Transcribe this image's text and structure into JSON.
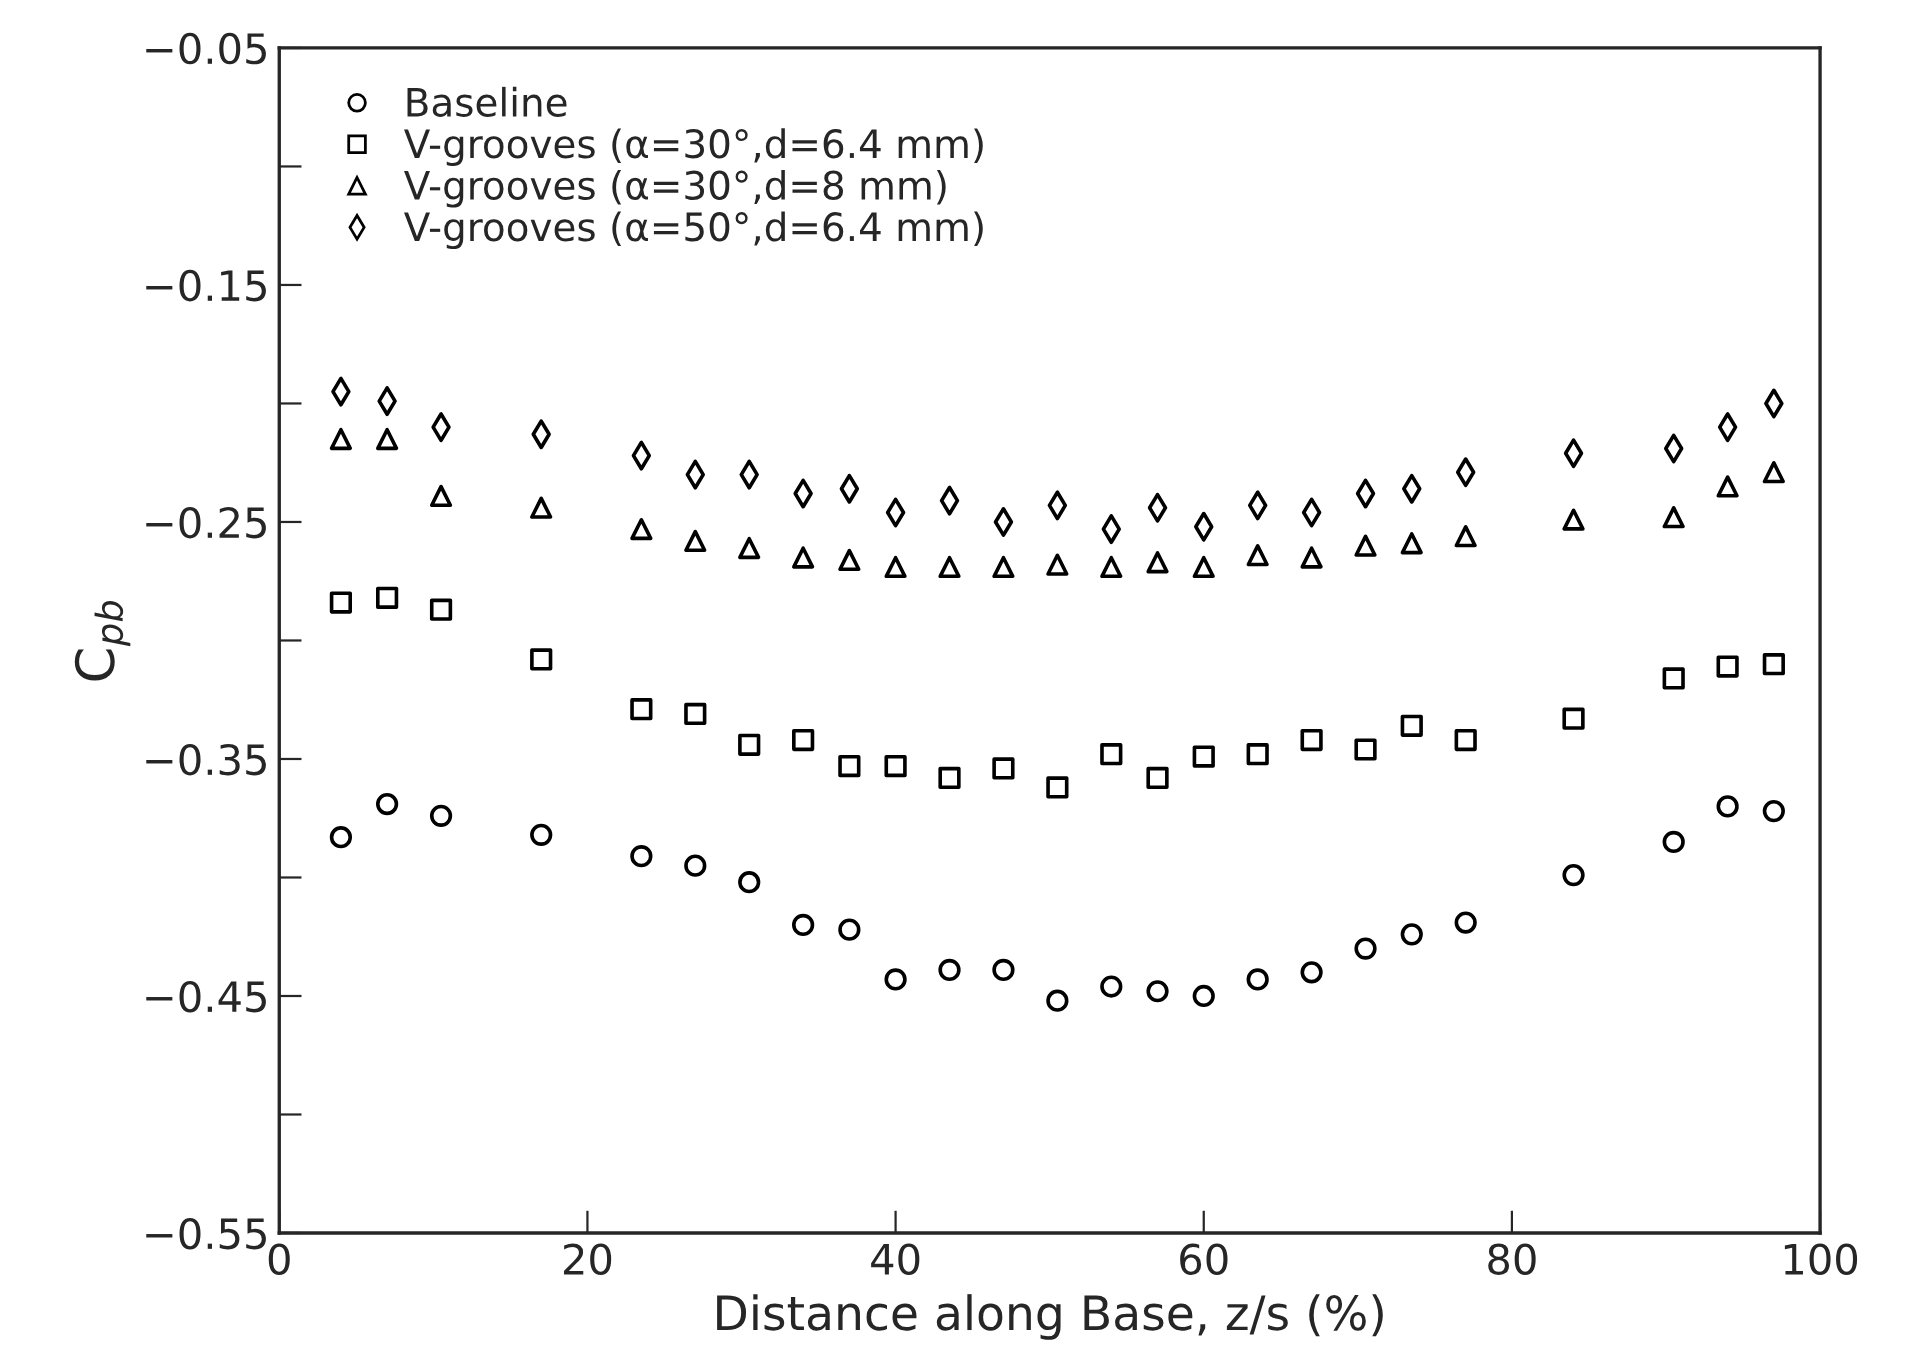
{
  "chart_data": {
    "type": "scatter",
    "xlabel": "Distance along Base, z/s (%)",
    "ylabel": "C$_{pb}$",
    "x": [
      4,
      7,
      10.5,
      17,
      23.5,
      27,
      30.5,
      34,
      37,
      40,
      43.5,
      47,
      50.5,
      54,
      57,
      60,
      63.5,
      67,
      70.5,
      73.5,
      77,
      84,
      90.5,
      94,
      97
    ],
    "series": [
      {
        "name": "Baseline",
        "color": "#000000",
        "marker": "circle",
        "values": [
          -0.383,
          -0.369,
          -0.374,
          -0.382,
          -0.391,
          -0.395,
          -0.402,
          -0.42,
          -0.422,
          -0.443,
          -0.439,
          -0.439,
          -0.452,
          -0.446,
          -0.448,
          -0.45,
          -0.443,
          -0.44,
          -0.43,
          -0.424,
          -0.419,
          -0.399,
          -0.385,
          -0.37,
          -0.372
        ]
      },
      {
        "name": "V-grooves (α=30°,d=6.4 mm)",
        "color": "#000000",
        "marker": "square",
        "values": [
          -0.284,
          -0.282,
          -0.287,
          -0.308,
          -0.329,
          -0.331,
          -0.344,
          -0.342,
          -0.353,
          -0.353,
          -0.358,
          -0.354,
          -0.362,
          -0.348,
          -0.358,
          -0.349,
          -0.348,
          -0.342,
          -0.346,
          -0.336,
          -0.342,
          -0.333,
          -0.316,
          -0.311,
          -0.31
        ]
      },
      {
        "name": "V-grooves (α=30°,d=8 mm)",
        "color": "#000000",
        "marker": "triangle",
        "values": [
          -0.215,
          -0.215,
          -0.239,
          -0.244,
          -0.253,
          -0.258,
          -0.261,
          -0.265,
          -0.266,
          -0.269,
          -0.269,
          -0.269,
          -0.268,
          -0.269,
          -0.267,
          -0.269,
          -0.264,
          -0.265,
          -0.26,
          -0.259,
          -0.256,
          -0.249,
          -0.248,
          -0.235,
          -0.229
        ]
      },
      {
        "name": "V-grooves (α=50°,d=6.4 mm)",
        "color": "#000000",
        "marker": "diamond",
        "values": [
          -0.195,
          -0.199,
          -0.21,
          -0.213,
          -0.222,
          -0.23,
          -0.23,
          -0.238,
          -0.236,
          -0.246,
          -0.241,
          -0.25,
          -0.243,
          -0.253,
          -0.244,
          -0.252,
          -0.243,
          -0.246,
          -0.238,
          -0.236,
          -0.229,
          -0.221,
          -0.219,
          -0.21,
          -0.2
        ]
      }
    ],
    "xlim": [
      0,
      100
    ],
    "xticks": [
      0,
      20,
      40,
      60,
      80,
      100
    ],
    "ylim": [
      -0.55,
      -0.05
    ],
    "yticks": [
      -0.55,
      {
        "value": -0.5,
        "label": null
      },
      -0.45,
      {
        "value": -0.4,
        "label": null
      },
      -0.35,
      {
        "value": -0.3,
        "label": null
      },
      -0.25,
      {
        "value": -0.2,
        "label": null
      },
      -0.15,
      {
        "value": -0.1,
        "label": null
      },
      -0.05
    ],
    "grid": false,
    "legend": "top left"
  }
}
